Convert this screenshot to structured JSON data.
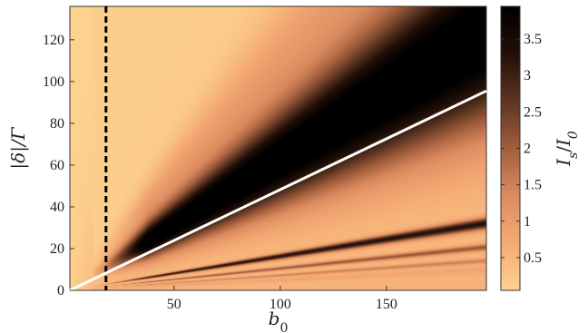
{
  "chart_data": {
    "type": "heatmap",
    "title": "",
    "xlabel": "b_0",
    "ylabel": "|δ|/Γ",
    "colorbar_label": "I_s/I_0",
    "xlim": [
      1,
      197
    ],
    "ylim": [
      0,
      136
    ],
    "x_ticks": [
      50,
      100,
      150
    ],
    "y_ticks": [
      0,
      20,
      40,
      60,
      80,
      100,
      120
    ],
    "colorbar_range": [
      0.05,
      3.95
    ],
    "colorbar_ticks": [
      0.5,
      1,
      1.5,
      2,
      2.5,
      3,
      3.5
    ],
    "colormap": [
      "#fdd28f",
      "#f4aa74",
      "#dc8c60",
      "#a25e3c",
      "#5c3422",
      "#220f08",
      "#000000"
    ],
    "overlays": [
      {
        "name": "white-line",
        "kind": "line",
        "color": "#ffffff",
        "points": [
          [
            1,
            0
          ],
          [
            197,
            95.5
          ]
        ]
      },
      {
        "name": "dashed-line",
        "kind": "vertical-dashed",
        "color": "#000000",
        "x": 18
      }
    ]
  }
}
